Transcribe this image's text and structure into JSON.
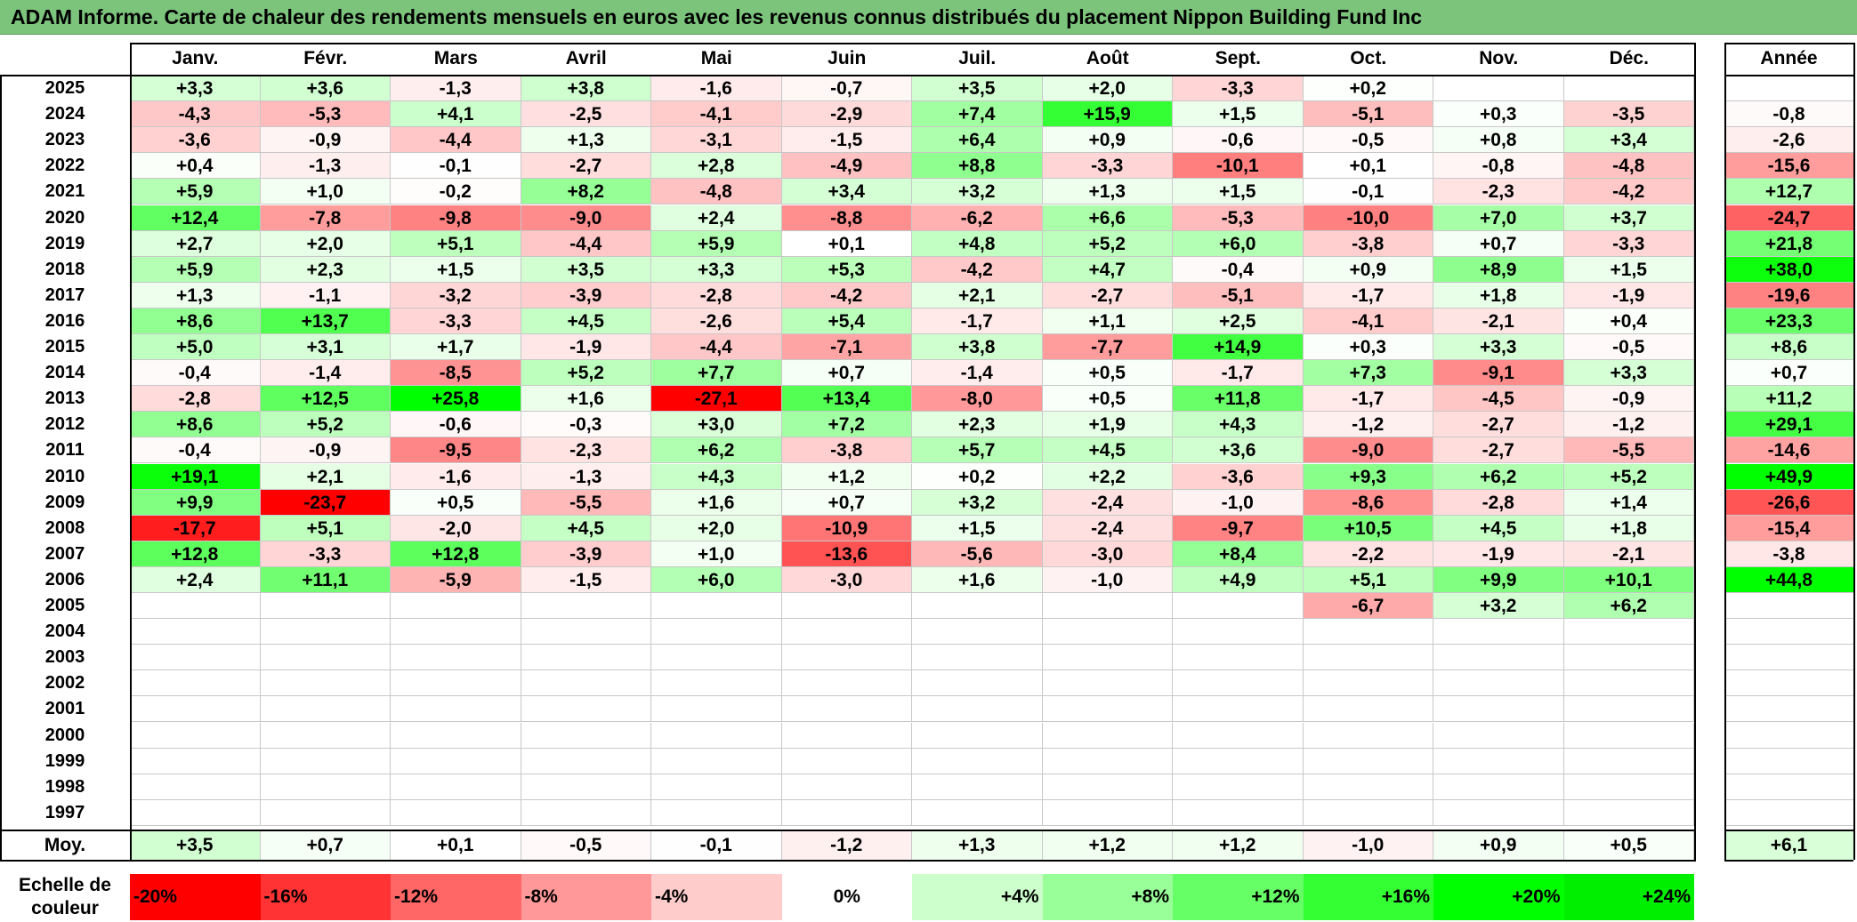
{
  "title": "ADAM Informe. Carte de chaleur des rendements mensuels en euros avec les revenus connus distribués du placement Nippon Building Fund Inc",
  "chart_data": {
    "type": "heatmap",
    "months": [
      "Janv.",
      "Févr.",
      "Mars",
      "Avril",
      "Mai",
      "Juin",
      "Juil.",
      "Août",
      "Sept.",
      "Oct.",
      "Nov.",
      "Déc."
    ],
    "year_header": "Année",
    "rows": [
      {
        "year": "2025",
        "values": [
          "+3,3",
          "+3,6",
          "-1,3",
          "+3,8",
          "-1,6",
          "-0,7",
          "+3,5",
          "+2,0",
          "-3,3",
          "+0,2",
          "",
          ""
        ],
        "annual": ""
      },
      {
        "year": "2024",
        "values": [
          "-4,3",
          "-5,3",
          "+4,1",
          "-2,5",
          "-4,1",
          "-2,9",
          "+7,4",
          "+15,9",
          "+1,5",
          "-5,1",
          "+0,3",
          "-3,5"
        ],
        "annual": "-0,8"
      },
      {
        "year": "2023",
        "values": [
          "-3,6",
          "-0,9",
          "-4,4",
          "+1,3",
          "-3,1",
          "-1,5",
          "+6,4",
          "+0,9",
          "-0,6",
          "-0,5",
          "+0,8",
          "+3,4"
        ],
        "annual": "-2,6"
      },
      {
        "year": "2022",
        "values": [
          "+0,4",
          "-1,3",
          "-0,1",
          "-2,7",
          "+2,8",
          "-4,9",
          "+8,8",
          "-3,3",
          "-10,1",
          "+0,1",
          "-0,8",
          "-4,8"
        ],
        "annual": "-15,6"
      },
      {
        "year": "2021",
        "values": [
          "+5,9",
          "+1,0",
          "-0,2",
          "+8,2",
          "-4,8",
          "+3,4",
          "+3,2",
          "+1,3",
          "+1,5",
          "-0,1",
          "-2,3",
          "-4,2"
        ],
        "annual": "+12,7"
      },
      {
        "year": "2020",
        "values": [
          "+12,4",
          "-7,8",
          "-9,8",
          "-9,0",
          "+2,4",
          "-8,8",
          "-6,2",
          "+6,6",
          "-5,3",
          "-10,0",
          "+7,0",
          "+3,7"
        ],
        "annual": "-24,7"
      },
      {
        "year": "2019",
        "values": [
          "+2,7",
          "+2,0",
          "+5,1",
          "-4,4",
          "+5,9",
          "+0,1",
          "+4,8",
          "+5,2",
          "+6,0",
          "-3,8",
          "+0,7",
          "-3,3"
        ],
        "annual": "+21,8"
      },
      {
        "year": "2018",
        "values": [
          "+5,9",
          "+2,3",
          "+1,5",
          "+3,5",
          "+3,3",
          "+5,3",
          "-4,2",
          "+4,7",
          "-0,4",
          "+0,9",
          "+8,9",
          "+1,5"
        ],
        "annual": "+38,0"
      },
      {
        "year": "2017",
        "values": [
          "+1,3",
          "-1,1",
          "-3,2",
          "-3,9",
          "-2,8",
          "-4,2",
          "+2,1",
          "-2,7",
          "-5,1",
          "-1,7",
          "+1,8",
          "-1,9"
        ],
        "annual": "-19,6"
      },
      {
        "year": "2016",
        "values": [
          "+8,6",
          "+13,7",
          "-3,3",
          "+4,5",
          "-2,6",
          "+5,4",
          "-1,7",
          "+1,1",
          "+2,5",
          "-4,1",
          "-2,1",
          "+0,4"
        ],
        "annual": "+23,3"
      },
      {
        "year": "2015",
        "values": [
          "+5,0",
          "+3,1",
          "+1,7",
          "-1,9",
          "-4,4",
          "-7,1",
          "+3,8",
          "-7,7",
          "+14,9",
          "+0,3",
          "+3,3",
          "-0,5"
        ],
        "annual": "+8,6"
      },
      {
        "year": "2014",
        "values": [
          "-0,4",
          "-1,4",
          "-8,5",
          "+5,2",
          "+7,7",
          "+0,7",
          "-1,4",
          "+0,5",
          "-1,7",
          "+7,3",
          "-9,1",
          "+3,3"
        ],
        "annual": "+0,7"
      },
      {
        "year": "2013",
        "values": [
          "-2,8",
          "+12,5",
          "+25,8",
          "+1,6",
          "-27,1",
          "+13,4",
          "-8,0",
          "+0,5",
          "+11,8",
          "-1,7",
          "-4,5",
          "-0,9"
        ],
        "annual": "+11,2"
      },
      {
        "year": "2012",
        "values": [
          "+8,6",
          "+5,2",
          "-0,6",
          "-0,3",
          "+3,0",
          "+7,2",
          "+2,3",
          "+1,9",
          "+4,3",
          "-1,2",
          "-2,7",
          "-1,2"
        ],
        "annual": "+29,1"
      },
      {
        "year": "2011",
        "values": [
          "-0,4",
          "-0,9",
          "-9,5",
          "-2,3",
          "+6,2",
          "-3,8",
          "+5,7",
          "+4,5",
          "+3,6",
          "-9,0",
          "-2,7",
          "-5,5"
        ],
        "annual": "-14,6"
      },
      {
        "year": "2010",
        "values": [
          "+19,1",
          "+2,1",
          "-1,6",
          "-1,3",
          "+4,3",
          "+1,2",
          "+0,2",
          "+2,2",
          "-3,6",
          "+9,3",
          "+6,2",
          "+5,2"
        ],
        "annual": "+49,9"
      },
      {
        "year": "2009",
        "values": [
          "+9,9",
          "-23,7",
          "+0,5",
          "-5,5",
          "+1,6",
          "+0,7",
          "+3,2",
          "-2,4",
          "-1,0",
          "-8,6",
          "-2,8",
          "+1,4"
        ],
        "annual": "-26,6"
      },
      {
        "year": "2008",
        "values": [
          "-17,7",
          "+5,1",
          "-2,0",
          "+4,5",
          "+2,0",
          "-10,9",
          "+1,5",
          "-2,4",
          "-9,7",
          "+10,5",
          "+4,5",
          "+1,8"
        ],
        "annual": "-15,4"
      },
      {
        "year": "2007",
        "values": [
          "+12,8",
          "-3,3",
          "+12,8",
          "-3,9",
          "+1,0",
          "-13,6",
          "-5,6",
          "-3,0",
          "+8,4",
          "-2,2",
          "-1,9",
          "-2,1"
        ],
        "annual": "-3,8"
      },
      {
        "year": "2006",
        "values": [
          "+2,4",
          "+11,1",
          "-5,9",
          "-1,5",
          "+6,0",
          "-3,0",
          "+1,6",
          "-1,0",
          "+4,9",
          "+5,1",
          "+9,9",
          "+10,1"
        ],
        "annual": "+44,8"
      },
      {
        "year": "2005",
        "values": [
          "",
          "",
          "",
          "",
          "",
          "",
          "",
          "",
          "",
          "-6,7",
          "+3,2",
          "+6,2"
        ],
        "annual": ""
      },
      {
        "year": "2004",
        "values": [
          "",
          "",
          "",
          "",
          "",
          "",
          "",
          "",
          "",
          "",
          "",
          ""
        ],
        "annual": ""
      },
      {
        "year": "2003",
        "values": [
          "",
          "",
          "",
          "",
          "",
          "",
          "",
          "",
          "",
          "",
          "",
          ""
        ],
        "annual": ""
      },
      {
        "year": "2002",
        "values": [
          "",
          "",
          "",
          "",
          "",
          "",
          "",
          "",
          "",
          "",
          "",
          ""
        ],
        "annual": ""
      },
      {
        "year": "2001",
        "values": [
          "",
          "",
          "",
          "",
          "",
          "",
          "",
          "",
          "",
          "",
          "",
          ""
        ],
        "annual": ""
      },
      {
        "year": "2000",
        "values": [
          "",
          "",
          "",
          "",
          "",
          "",
          "",
          "",
          "",
          "",
          "",
          ""
        ],
        "annual": ""
      },
      {
        "year": "1999",
        "values": [
          "",
          "",
          "",
          "",
          "",
          "",
          "",
          "",
          "",
          "",
          "",
          ""
        ],
        "annual": ""
      },
      {
        "year": "1998",
        "values": [
          "",
          "",
          "",
          "",
          "",
          "",
          "",
          "",
          "",
          "",
          "",
          ""
        ],
        "annual": ""
      },
      {
        "year": "1997",
        "values": [
          "",
          "",
          "",
          "",
          "",
          "",
          "",
          "",
          "",
          "",
          "",
          ""
        ],
        "annual": ""
      }
    ],
    "average": {
      "label": "Moy.",
      "values": [
        "+3,5",
        "+0,7",
        "+0,1",
        "-0,5",
        "-0,1",
        "-1,2",
        "+1,3",
        "+1,2",
        "+1,2",
        "-1,0",
        "+0,9",
        "+0,5"
      ],
      "annual": "+6,1"
    },
    "scale": {
      "label_line1": "Echelle de",
      "label_line2": "couleur",
      "stops": [
        {
          "label": "-20%",
          "color": "#ff0000"
        },
        {
          "label": "-16%",
          "color": "#ff3333"
        },
        {
          "label": "-12%",
          "color": "#ff6666"
        },
        {
          "label": "-8%",
          "color": "#ff9999"
        },
        {
          "label": "-4%",
          "color": "#ffcccc"
        },
        {
          "label": "0%",
          "color": "#ffffff"
        },
        {
          "label": "+4%",
          "color": "#ccffcc"
        },
        {
          "label": "+8%",
          "color": "#99ff99"
        },
        {
          "label": "+12%",
          "color": "#66ff66"
        },
        {
          "label": "+16%",
          "color": "#33ff33"
        },
        {
          "label": "+20%",
          "color": "#00ff00"
        },
        {
          "label": "+24%",
          "color": "#00ee00"
        }
      ]
    },
    "colors": {
      "title_bar": "#7cc47c",
      "positive_max": "#00ff00",
      "negative_max": "#ff0000",
      "neutral": "#ffffff"
    }
  }
}
